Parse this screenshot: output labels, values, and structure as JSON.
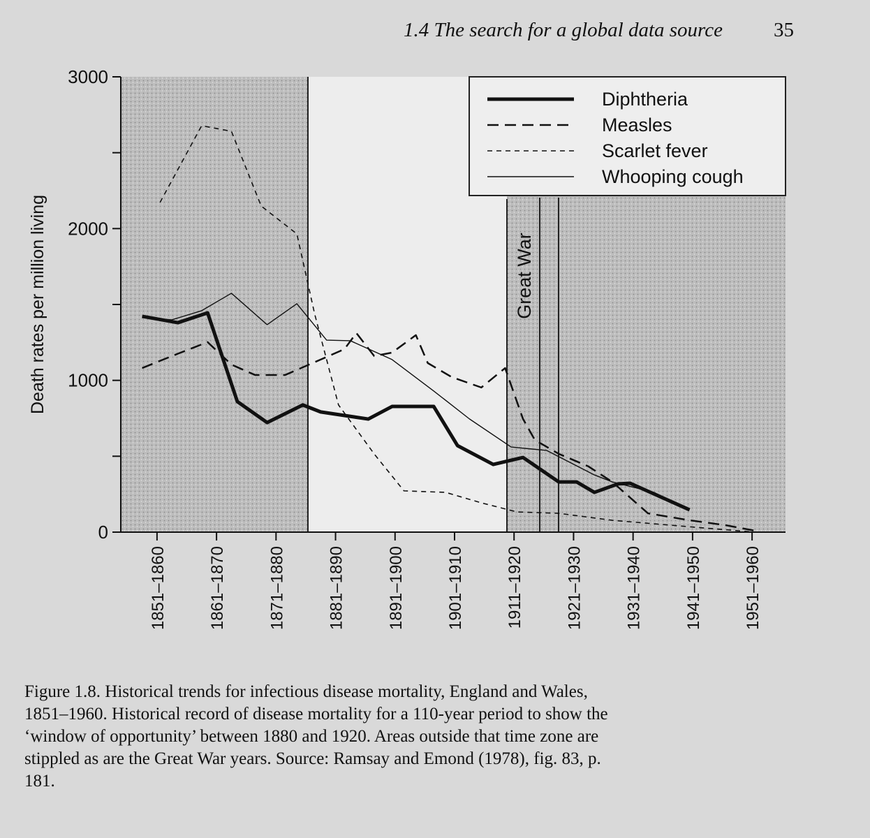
{
  "header": {
    "title": "1.4  The search for a global data source",
    "page": "35"
  },
  "chart_data": {
    "type": "line",
    "ylabel": "Death rates per million living",
    "xlim": [
      1850,
      1961
    ],
    "xticks": [
      {
        "value": 1855.5,
        "label": "1851–1860"
      },
      {
        "value": 1865.5,
        "label": "1861–1870"
      },
      {
        "value": 1875.5,
        "label": "1871–1880"
      },
      {
        "value": 1885.5,
        "label": "1881–1890"
      },
      {
        "value": 1895.5,
        "label": "1891–1900"
      },
      {
        "value": 1905.5,
        "label": "1901–1910"
      },
      {
        "value": 1915.5,
        "label": "1911–1920"
      },
      {
        "value": 1925.5,
        "label": "1921–1930"
      },
      {
        "value": 1935.5,
        "label": "1931–1940"
      },
      {
        "value": 1945.5,
        "label": "1941–1950"
      },
      {
        "value": 1955.5,
        "label": "1951–1960"
      }
    ],
    "ylim": [
      0,
      3000
    ],
    "yticks": [
      0,
      1000,
      2000,
      3000
    ],
    "yminor_ticks": [
      500,
      1500,
      2500
    ],
    "annotation": "Great War",
    "series": [
      {
        "name": "Diphtheria",
        "style": "thick",
        "x": [
          1853,
          1859,
          1864,
          1869,
          1874,
          1880,
          1883,
          1891,
          1895,
          1902,
          1906,
          1912,
          1917,
          1923,
          1926,
          1929,
          1933,
          1935,
          1945
        ],
        "values": [
          1422,
          1380,
          1445,
          860,
          722,
          838,
          792,
          745,
          828,
          828,
          570,
          446,
          492,
          331,
          331,
          262,
          318,
          322,
          147
        ]
      },
      {
        "name": "Measles",
        "style": "long-dash",
        "x": [
          1853,
          1858,
          1864,
          1868,
          1872,
          1877,
          1883,
          1887,
          1889,
          1892,
          1895,
          1899,
          1901,
          1905,
          1910,
          1914,
          1917,
          1919,
          1923,
          1928,
          1932,
          1938,
          1945,
          1951,
          1956
        ],
        "values": [
          1081,
          1160,
          1252,
          1104,
          1035,
          1035,
          1137,
          1206,
          1312,
          1160,
          1183,
          1298,
          1114,
          1022,
          953,
          1081,
          746,
          607,
          516,
          433,
          331,
          124,
          78,
          46,
          9
        ]
      },
      {
        "name": "Scarlet fever",
        "style": "short-dash",
        "x": [
          1856,
          1863,
          1868,
          1873,
          1879,
          1882,
          1886,
          1892,
          1897,
          1904,
          1910,
          1916,
          1923,
          1932,
          1939,
          1946,
          1956
        ],
        "values": [
          2172,
          2678,
          2641,
          2149,
          1965,
          1436,
          838,
          515,
          272,
          262,
          193,
          133,
          124,
          78,
          55,
          32,
          0
        ]
      },
      {
        "name": "Whooping cough",
        "style": "thin",
        "x": [
          1853,
          1858,
          1863,
          1868,
          1874,
          1879,
          1884,
          1888,
          1895,
          1902,
          1908,
          1915,
          1921,
          1929,
          1932,
          1939,
          1945
        ],
        "values": [
          1413,
          1399,
          1459,
          1574,
          1367,
          1505,
          1265,
          1261,
          1137,
          930,
          746,
          561,
          538,
          377,
          331,
          262,
          147
        ]
      }
    ]
  },
  "caption": [
    "Figure 1.8. Historical trends for infectious disease mortality, England and Wales,",
    "1851–1960. Historical record of disease mortality for a 110-year period to show the",
    "‘window of opportunity’ between 1880 and 1920. Areas outside that time zone are",
    "stippled as are the Great War years. Source: Ramsay and Emond (1978), fig. 83, p.",
    "181."
  ]
}
